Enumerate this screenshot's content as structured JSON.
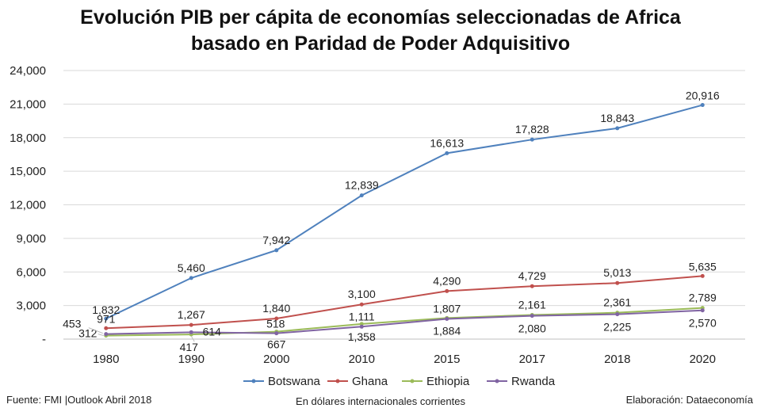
{
  "title_line1": "Evolución PIB per cápita de economías seleccionadas de Africa",
  "title_line2": "basado en Paridad de Poder Adquisitivo",
  "footer": {
    "source": "Fuente: FMI |Outlook Abril 2018",
    "units": "En dólares internacionales corrientes",
    "credit": "Elaboración: Dataeconomía"
  },
  "chart_data": {
    "type": "line",
    "title": "Evolución PIB per cápita de economías seleccionadas de Africa basado en Paridad de Poder Adquisitivo",
    "xlabel": "",
    "ylabel": "",
    "categories": [
      "1980",
      "1990",
      "2000",
      "2010",
      "2015",
      "2017",
      "2018",
      "2020"
    ],
    "ylim": [
      0,
      24000
    ],
    "yticks": [
      0,
      3000,
      6000,
      9000,
      12000,
      15000,
      18000,
      21000,
      24000
    ],
    "ytick_labels": [
      "-",
      "3,000",
      "6,000",
      "9,000",
      "12,000",
      "15,000",
      "18,000",
      "21,000",
      "24,000"
    ],
    "grid": "horizontal",
    "legend_position": "bottom",
    "series": [
      {
        "name": "Botswana",
        "color": "#4f81bd",
        "values": [
          1832,
          5460,
          7942,
          12839,
          16613,
          17828,
          18843,
          20916
        ],
        "labels": [
          "1,832",
          "5,460",
          "7,942",
          "12,839",
          "16,613",
          "17,828",
          "18,843",
          "20,916"
        ]
      },
      {
        "name": "Ghana",
        "color": "#c0504d",
        "values": [
          971,
          1267,
          1840,
          3100,
          4290,
          4729,
          5013,
          5635
        ],
        "labels": [
          "971",
          "1,267",
          "1,840",
          "3,100",
          "4,290",
          "4,729",
          "5,013",
          "5,635"
        ]
      },
      {
        "name": "Ethiopia",
        "color": "#9bbb59",
        "values": [
          312,
          417,
          667,
          1358,
          1884,
          2161,
          2361,
          2789
        ],
        "labels": [
          "312",
          "417",
          "667",
          "1,358",
          "1,884",
          "2,161",
          "2,361",
          "2,789"
        ]
      },
      {
        "name": "Rwanda",
        "color": "#8064a2",
        "values": [
          453,
          614,
          518,
          1111,
          1807,
          2080,
          2225,
          2570
        ],
        "labels": [
          "453",
          "614",
          "518",
          "1,111",
          "1,807",
          "2,080",
          "2,225",
          "2,570"
        ]
      }
    ]
  }
}
